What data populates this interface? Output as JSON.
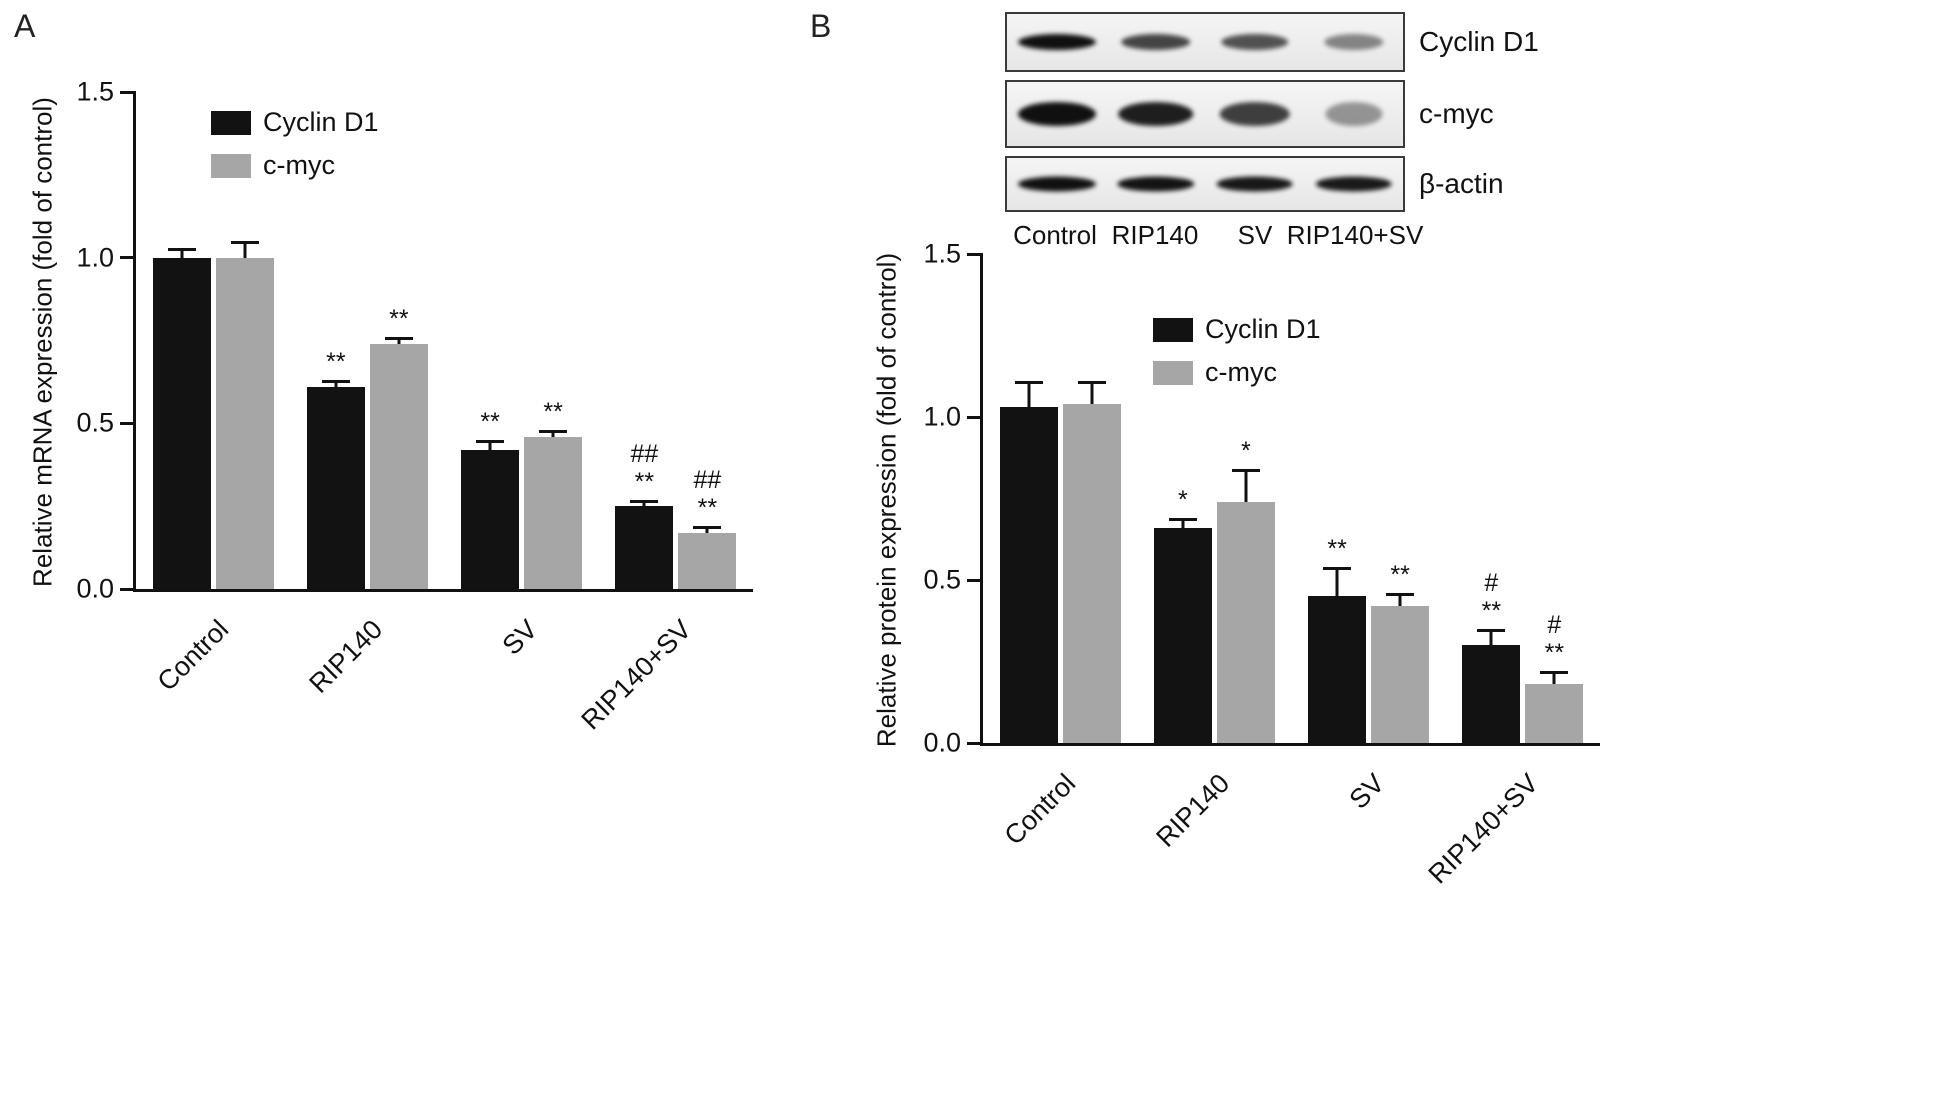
{
  "figure": {
    "panels": [
      {
        "label": "A"
      },
      {
        "label": "B"
      }
    ]
  },
  "colors": {
    "bar_black": "#121212",
    "bar_gray": "#a6a6a6",
    "axis": "#111111"
  },
  "chart_data": [
    {
      "type": "bar",
      "panel": "A",
      "ylabel": "Relative mRNA expression (fold of control)",
      "xlabel": "",
      "ylim": [
        0,
        1.5
      ],
      "yticks": [
        "0.0",
        "0.5",
        "1.0",
        "1.5"
      ],
      "categories": [
        "Control",
        "RIP140",
        "SV",
        "RIP140+SV"
      ],
      "legend_position": "upper-left",
      "grid": false,
      "series": [
        {
          "name": "Cyclin D1",
          "color": "#121212",
          "values": [
            1.0,
            0.61,
            0.42,
            0.25
          ],
          "errors": [
            0.03,
            0.02,
            0.03,
            0.02
          ],
          "annotations": [
            "",
            "**",
            "**",
            "##\n**"
          ]
        },
        {
          "name": "c-myc",
          "color": "#a6a6a6",
          "values": [
            1.0,
            0.74,
            0.46,
            0.17
          ],
          "errors": [
            0.05,
            0.02,
            0.02,
            0.02
          ],
          "annotations": [
            "",
            "**",
            "**",
            "##\n**"
          ]
        }
      ]
    },
    {
      "type": "bar",
      "panel": "B",
      "ylabel": "Relative protein expression (fold of control)",
      "xlabel": "",
      "ylim": [
        0,
        1.5
      ],
      "yticks": [
        "0.0",
        "0.5",
        "1.0",
        "1.5"
      ],
      "categories": [
        "Control",
        "RIP140",
        "SV",
        "RIP140+SV"
      ],
      "legend_position": "upper-left",
      "grid": false,
      "series": [
        {
          "name": "Cyclin D1",
          "color": "#121212",
          "values": [
            1.03,
            0.66,
            0.45,
            0.3
          ],
          "errors": [
            0.08,
            0.03,
            0.09,
            0.05
          ],
          "annotations": [
            "",
            "*",
            "**",
            "#\n**"
          ]
        },
        {
          "name": "c-myc",
          "color": "#a6a6a6",
          "values": [
            1.04,
            0.74,
            0.42,
            0.18
          ],
          "errors": [
            0.07,
            0.1,
            0.04,
            0.04
          ],
          "annotations": [
            "",
            "*",
            "**",
            "#\n**"
          ]
        }
      ]
    }
  ],
  "western_blot": {
    "rows": [
      {
        "label": "Cyclin D1",
        "band_intensities": [
          1.0,
          0.72,
          0.65,
          0.38
        ]
      },
      {
        "label": "c-myc",
        "band_intensities": [
          1.0,
          0.92,
          0.75,
          0.3
        ]
      },
      {
        "label": "β-actin",
        "band_intensities": [
          1.0,
          0.98,
          0.96,
          0.95
        ]
      }
    ],
    "lanes": [
      "Control",
      "RIP140",
      "SV",
      "RIP140+SV"
    ]
  }
}
